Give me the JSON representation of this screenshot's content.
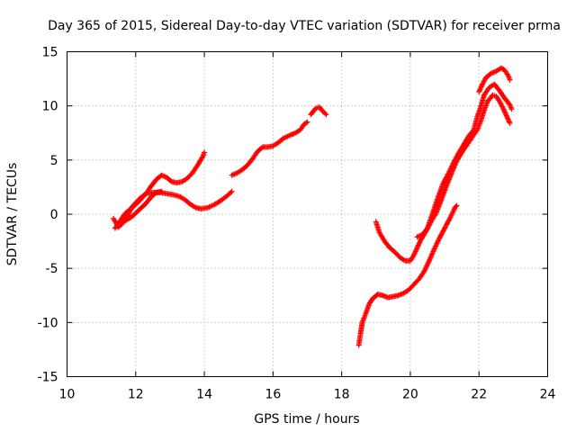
{
  "chart_data": {
    "type": "scatter",
    "title": "Day 365 of 2015, Sidereal Day-to-day VTEC variation (SDTVAR) for receiver prma",
    "xlabel": "GPS time / hours",
    "ylabel": "SDTVAR / TECUs",
    "xlim": [
      10,
      24
    ],
    "ylim": [
      -15,
      15
    ],
    "xticks": [
      "10",
      "12",
      "14",
      "16",
      "18",
      "20",
      "22",
      "24"
    ],
    "yticks": [
      "-15",
      "-10",
      "-5",
      "0",
      "5",
      "10",
      "15"
    ],
    "grid": true,
    "marker": "+",
    "color": "#ff0000",
    "series": [
      {
        "points": [
          [
            11.35,
            -0.4
          ],
          [
            11.5,
            -1.2
          ],
          [
            11.6,
            -0.9
          ],
          [
            11.75,
            -0.2
          ],
          [
            11.9,
            0.7
          ],
          [
            12.1,
            1.4
          ],
          [
            12.3,
            1.9
          ],
          [
            12.5,
            2.0
          ],
          [
            12.7,
            2.0
          ],
          [
            12.9,
            1.9
          ],
          [
            13.1,
            1.8
          ],
          [
            13.3,
            1.6
          ],
          [
            13.45,
            1.3
          ],
          [
            13.6,
            0.9
          ],
          [
            13.75,
            0.6
          ],
          [
            13.9,
            0.5
          ],
          [
            14.1,
            0.6
          ],
          [
            14.3,
            0.9
          ],
          [
            14.5,
            1.3
          ],
          [
            14.7,
            1.8
          ],
          [
            14.8,
            2.1
          ]
        ]
      },
      {
        "points": [
          [
            11.4,
            -1.3
          ],
          [
            11.55,
            -0.6
          ],
          [
            11.7,
            0.1
          ],
          [
            11.9,
            0.6
          ],
          [
            12.1,
            1.2
          ],
          [
            12.3,
            1.9
          ],
          [
            12.45,
            2.6
          ],
          [
            12.6,
            3.2
          ],
          [
            12.75,
            3.6
          ],
          [
            12.9,
            3.4
          ],
          [
            13.05,
            3.0
          ],
          [
            13.2,
            2.9
          ],
          [
            13.35,
            3.0
          ],
          [
            13.5,
            3.3
          ],
          [
            13.65,
            3.8
          ],
          [
            13.8,
            4.5
          ],
          [
            13.95,
            5.3
          ],
          [
            14.0,
            5.7
          ]
        ]
      },
      {
        "points": [
          [
            11.5,
            -1.0
          ],
          [
            11.7,
            -0.6
          ],
          [
            11.9,
            -0.2
          ],
          [
            12.1,
            0.4
          ],
          [
            12.3,
            1.0
          ],
          [
            12.45,
            1.6
          ],
          [
            12.6,
            2.0
          ],
          [
            12.75,
            2.1
          ]
        ]
      },
      {
        "points": [
          [
            14.8,
            3.6
          ],
          [
            14.95,
            3.8
          ],
          [
            15.1,
            4.1
          ],
          [
            15.25,
            4.5
          ],
          [
            15.4,
            5.1
          ],
          [
            15.55,
            5.8
          ],
          [
            15.7,
            6.2
          ],
          [
            15.85,
            6.2
          ],
          [
            16.0,
            6.3
          ],
          [
            16.15,
            6.6
          ],
          [
            16.3,
            7.0
          ],
          [
            16.5,
            7.3
          ],
          [
            16.65,
            7.5
          ],
          [
            16.8,
            7.8
          ],
          [
            16.9,
            8.3
          ],
          [
            17.0,
            8.5
          ]
        ]
      },
      {
        "points": [
          [
            17.1,
            9.2
          ],
          [
            17.25,
            9.8
          ],
          [
            17.35,
            9.9
          ],
          [
            17.45,
            9.5
          ],
          [
            17.55,
            9.2
          ]
        ]
      },
      {
        "points": [
          [
            18.5,
            -12.1
          ],
          [
            18.55,
            -11.0
          ],
          [
            18.6,
            -10.0
          ],
          [
            18.7,
            -9.2
          ],
          [
            18.8,
            -8.3
          ],
          [
            18.9,
            -7.8
          ],
          [
            19.05,
            -7.4
          ],
          [
            19.2,
            -7.5
          ],
          [
            19.35,
            -7.7
          ],
          [
            19.5,
            -7.6
          ],
          [
            19.65,
            -7.5
          ],
          [
            19.8,
            -7.3
          ],
          [
            19.95,
            -7.0
          ],
          [
            20.1,
            -6.5
          ],
          [
            20.25,
            -6.0
          ],
          [
            20.4,
            -5.3
          ],
          [
            20.55,
            -4.3
          ],
          [
            20.7,
            -3.2
          ],
          [
            20.85,
            -2.2
          ],
          [
            21.0,
            -1.3
          ],
          [
            21.15,
            -0.4
          ],
          [
            21.3,
            0.6
          ],
          [
            21.35,
            0.8
          ]
        ]
      },
      {
        "points": [
          [
            19.0,
            -0.7
          ],
          [
            19.1,
            -1.7
          ],
          [
            19.25,
            -2.5
          ],
          [
            19.4,
            -3.1
          ],
          [
            19.55,
            -3.5
          ],
          [
            19.7,
            -4.0
          ],
          [
            19.85,
            -4.3
          ],
          [
            20.0,
            -4.3
          ],
          [
            20.1,
            -3.8
          ],
          [
            20.2,
            -3.1
          ],
          [
            20.3,
            -2.4
          ],
          [
            20.45,
            -1.6
          ],
          [
            20.6,
            -0.7
          ],
          [
            20.75,
            0.1
          ],
          [
            20.9,
            1.3
          ],
          [
            21.05,
            2.6
          ],
          [
            21.2,
            3.8
          ],
          [
            21.35,
            4.9
          ],
          [
            21.5,
            5.7
          ],
          [
            21.65,
            6.4
          ],
          [
            21.8,
            7.1
          ],
          [
            21.95,
            7.8
          ],
          [
            22.05,
            8.6
          ],
          [
            22.15,
            9.6
          ],
          [
            22.25,
            10.4
          ],
          [
            22.4,
            11.0
          ],
          [
            22.5,
            10.9
          ],
          [
            22.6,
            10.4
          ],
          [
            22.7,
            9.8
          ],
          [
            22.8,
            9.1
          ],
          [
            22.9,
            8.4
          ]
        ]
      },
      {
        "points": [
          [
            20.2,
            -2.1
          ],
          [
            20.35,
            -1.9
          ],
          [
            20.5,
            -1.3
          ],
          [
            20.65,
            0.1
          ],
          [
            20.8,
            1.5
          ],
          [
            20.95,
            2.8
          ],
          [
            21.1,
            3.7
          ],
          [
            21.25,
            4.7
          ],
          [
            21.4,
            5.6
          ],
          [
            21.55,
            6.4
          ],
          [
            21.7,
            7.2
          ],
          [
            21.85,
            7.8
          ],
          [
            21.95,
            9.0
          ],
          [
            22.05,
            9.9
          ],
          [
            22.15,
            11.0
          ],
          [
            22.3,
            11.7
          ],
          [
            22.45,
            12.0
          ],
          [
            22.6,
            11.4
          ],
          [
            22.75,
            10.7
          ],
          [
            22.9,
            10.1
          ],
          [
            22.95,
            9.7
          ]
        ]
      },
      {
        "points": [
          [
            22.0,
            11.3
          ],
          [
            22.1,
            12.0
          ],
          [
            22.2,
            12.6
          ],
          [
            22.35,
            13.0
          ],
          [
            22.5,
            13.2
          ],
          [
            22.65,
            13.5
          ],
          [
            22.75,
            13.3
          ],
          [
            22.85,
            12.8
          ],
          [
            22.9,
            12.4
          ]
        ]
      }
    ]
  }
}
